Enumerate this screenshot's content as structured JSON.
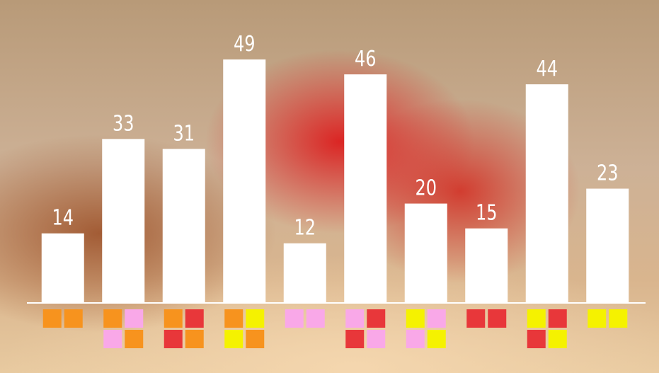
{
  "chart_data": {
    "type": "bar",
    "categories": [
      null,
      null,
      null,
      null,
      null,
      null,
      null,
      null,
      null,
      null
    ],
    "values": [
      14,
      33,
      31,
      49,
      12,
      46,
      20,
      15,
      44,
      23
    ],
    "color": "#ffffff",
    "ylim": [
      0,
      50
    ],
    "category_swatches": [
      [
        [
          "#f7931e",
          "#f7931e"
        ]
      ],
      [
        [
          "#f7931e",
          "#f9a8e8"
        ],
        [
          "#f9a8e8",
          "#f7931e"
        ]
      ],
      [
        [
          "#f7931e",
          "#e8373a"
        ],
        [
          "#e8373a",
          "#f7931e"
        ]
      ],
      [
        [
          "#f7931e",
          "#f5f200"
        ],
        [
          "#f5f200",
          "#f7931e"
        ]
      ],
      [
        [
          "#f9a8e8",
          "#f9a8e8"
        ]
      ],
      [
        [
          "#f9a8e8",
          "#e8373a"
        ],
        [
          "#e8373a",
          "#f9a8e8"
        ]
      ],
      [
        [
          "#f5f200",
          "#f9a8e8"
        ],
        [
          "#f9a8e8",
          "#f5f200"
        ]
      ],
      [
        [
          "#e8373a",
          "#e8373a"
        ]
      ],
      [
        [
          "#f5f200",
          "#e8373a"
        ],
        [
          "#e8373a",
          "#f5f200"
        ]
      ],
      [
        [
          "#f5f200",
          "#f5f200"
        ]
      ]
    ]
  }
}
